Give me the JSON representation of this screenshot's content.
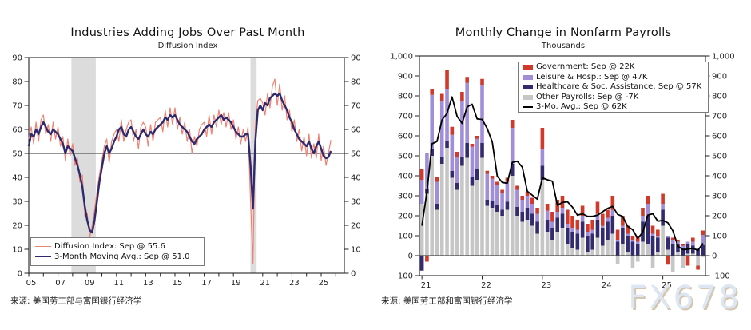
{
  "watermark": {
    "text": "FX678",
    "color": "#dde7f3",
    "shadow_color": "#d5c6b1"
  },
  "chart_data": [
    {
      "type": "line",
      "title": "Industries Adding Jobs Over Past Month",
      "subtitle": "Diffusion Index",
      "source": "来源: 美国劳工部与富国银行经济学",
      "ylim": [
        0,
        90
      ],
      "ytick_values": [
        0,
        10,
        20,
        30,
        40,
        50,
        60,
        70,
        80,
        90
      ],
      "ytick_labels": [
        "0",
        "10",
        "20",
        "30",
        "40",
        "50",
        "60",
        "70",
        "80",
        "90"
      ],
      "refline": 50,
      "x_domain_months": [
        0,
        259
      ],
      "x_start": "2005-01",
      "xticks": {
        "label_months": [
          0,
          24,
          48,
          72,
          96,
          120,
          144,
          168,
          192,
          216,
          240
        ],
        "labels": [
          "05",
          "07",
          "09",
          "11",
          "13",
          "15",
          "17",
          "19",
          "21",
          "23",
          "25"
        ],
        "minor_step_months": 12
      },
      "recession_bands": [
        {
          "start_month": 35,
          "end_month": 55
        },
        {
          "start_month": 182,
          "end_month": 187
        }
      ],
      "grid": false,
      "legend_position": "bottom-left",
      "series": [
        {
          "name": "Diffusion Index: Sep @ 55.6",
          "color": "#ee8273",
          "width": 1.2,
          "step_months": 2,
          "values": [
            56,
            61,
            54,
            63,
            55,
            64,
            66,
            58,
            62,
            55,
            63,
            56,
            61,
            53,
            57,
            47,
            56,
            49,
            54,
            45,
            48,
            38,
            41,
            24,
            25,
            15,
            20,
            26,
            34,
            41,
            47,
            53,
            56,
            46,
            55,
            58,
            60,
            55,
            64,
            55,
            60,
            63,
            64,
            55,
            60,
            52,
            61,
            63,
            61,
            53,
            62,
            55,
            63,
            64,
            65,
            59,
            68,
            61,
            69,
            62,
            69,
            60,
            65,
            58,
            63,
            55,
            60,
            50,
            57,
            53,
            60,
            62,
            63,
            57,
            66,
            58,
            66,
            61,
            68,
            62,
            67,
            61,
            67,
            60,
            64,
            56,
            61,
            54,
            60,
            55,
            61,
            30,
            4,
            62,
            72,
            73,
            71,
            66,
            75,
            69,
            78,
            81,
            70,
            79,
            68,
            74,
            64,
            68,
            59,
            64,
            55,
            60,
            51,
            57,
            49,
            58,
            48,
            54,
            48,
            58,
            47,
            53,
            45,
            50,
            55.6
          ]
        },
        {
          "name": "3-Month Moving Avg.: Sep @ 51.0",
          "color": "#2e2a6d",
          "width": 2.4,
          "step_months": 2,
          "values": [
            53,
            58,
            57,
            60,
            58,
            61,
            63,
            61,
            59,
            58,
            60,
            59,
            58,
            56,
            54,
            50,
            53,
            52,
            51,
            48,
            45,
            41,
            36,
            28,
            22,
            18,
            17,
            22,
            30,
            38,
            44,
            50,
            53,
            50,
            52,
            55,
            57,
            60,
            61,
            58,
            57,
            60,
            61,
            59,
            57,
            56,
            58,
            60,
            58,
            57,
            59,
            58,
            60,
            61,
            62,
            63,
            65,
            64,
            66,
            65,
            66,
            64,
            62,
            61,
            60,
            59,
            57,
            55,
            54,
            56,
            57,
            58,
            60,
            61,
            62,
            61,
            63,
            64,
            65,
            66,
            64,
            65,
            64,
            63,
            61,
            59,
            58,
            57,
            57,
            58,
            58,
            45,
            27,
            55,
            68,
            70,
            68,
            71,
            70,
            73,
            74,
            75,
            74,
            75,
            72,
            70,
            68,
            65,
            63,
            60,
            58,
            56,
            55,
            54,
            53,
            55,
            52,
            50,
            53,
            55,
            52,
            49,
            48,
            48.5,
            51
          ]
        }
      ]
    },
    {
      "type": "bar",
      "title": "Monthly Change in Nonfarm Payrolls",
      "subtitle": "Thousands",
      "source": "来源: 美国劳工部和富国银行经济学",
      "ylim": [
        -100,
        1000
      ],
      "ytick_values": [
        -100,
        0,
        100,
        200,
        300,
        400,
        500,
        600,
        700,
        800,
        900,
        1000
      ],
      "ytick_labels": [
        "-100",
        "0",
        "100",
        "200",
        "300",
        "400",
        "500",
        "600",
        "700",
        "800",
        "900",
        "1,000"
      ],
      "x_start": "2021-01",
      "n_months": 57,
      "xticks": {
        "label_months": [
          0,
          12,
          24,
          36,
          48
        ],
        "labels": [
          "21",
          "22",
          "23",
          "24",
          "25"
        ]
      },
      "grid": false,
      "legend_position": "top-right",
      "stack_order": [
        "other",
        "healthcare",
        "leisure",
        "government"
      ],
      "series": {
        "government": {
          "label": "Government: Sep @ 22K",
          "color": "#d03a2a",
          "values": [
            55,
            -30,
            30,
            25,
            35,
            95,
            40,
            25,
            45,
            30,
            15,
            15,
            30,
            15,
            15,
            15,
            15,
            20,
            40,
            20,
            20,
            20,
            30,
            30,
            105,
            35,
            50,
            60,
            60,
            70,
            60,
            50,
            50,
            40,
            50,
            60,
            60,
            40,
            70,
            50,
            50,
            40,
            20,
            30,
            40,
            40,
            40,
            30,
            50,
            -45,
            10,
            10,
            10,
            -50,
            20,
            -20,
            22
          ]
        },
        "leisure": {
          "label": "Leisure & Hosp.: Sep @ 47K",
          "color": "#a08fd8",
          "values": [
            120,
            180,
            270,
            110,
            280,
            260,
            180,
            130,
            280,
            300,
            150,
            150,
            290,
            130,
            110,
            100,
            85,
            100,
            180,
            85,
            60,
            60,
            50,
            40,
            85,
            45,
            30,
            30,
            30,
            20,
            20,
            20,
            30,
            20,
            20,
            30,
            10,
            20,
            30,
            10,
            10,
            10,
            10,
            10,
            30,
            60,
            10,
            10,
            30,
            10,
            20,
            10,
            10,
            10,
            20,
            10,
            47
          ]
        },
        "healthcare": {
          "label": "Healthcare & Soc. Assistance: Sep @ 57K",
          "color": "#322c6e",
          "values": [
            -75,
            25,
            35,
            30,
            35,
            35,
            35,
            35,
            45,
            75,
            45,
            55,
            75,
            30,
            35,
            35,
            30,
            40,
            60,
            45,
            50,
            60,
            60,
            60,
            70,
            60,
            60,
            70,
            70,
            80,
            80,
            80,
            80,
            80,
            80,
            90,
            90,
            90,
            90,
            70,
            80,
            80,
            70,
            60,
            100,
            140,
            100,
            70,
            80,
            60,
            60,
            40,
            40,
            50,
            40,
            30,
            57
          ]
        },
        "other": {
          "label": "Other Payrolls: Sep @ -7K",
          "color": "#c6c6c6",
          "values": [
            260,
            310,
            500,
            230,
            460,
            540,
            390,
            330,
            450,
            490,
            350,
            380,
            490,
            250,
            240,
            220,
            200,
            230,
            400,
            200,
            170,
            180,
            150,
            110,
            380,
            120,
            80,
            120,
            140,
            60,
            40,
            30,
            90,
            20,
            30,
            90,
            50,
            80,
            110,
            -40,
            60,
            20,
            -60,
            -30,
            70,
            60,
            -60,
            20,
            150,
            30,
            -80,
            20,
            -60,
            10,
            10,
            -50,
            -7
          ]
        }
      },
      "avg_line": {
        "label": "3-Mo. Avg.: Sep @ 62K",
        "color": "#000000",
        "values": [
          150,
          320,
          560,
          572,
          680,
          712,
          795,
          698,
          662,
          745,
          758,
          685,
          682,
          637,
          570,
          398,
          367,
          363,
          467,
          473,
          443,
          323,
          303,
          283,
          390,
          380,
          373,
          253,
          267,
          270,
          243,
          203,
          210,
          197,
          197,
          203,
          220,
          237,
          247,
          207,
          197,
          147,
          130,
          87,
          117,
          203,
          210,
          173,
          177,
          165,
          125,
          48,
          30,
          33,
          37,
          27,
          62
        ]
      }
    }
  ]
}
